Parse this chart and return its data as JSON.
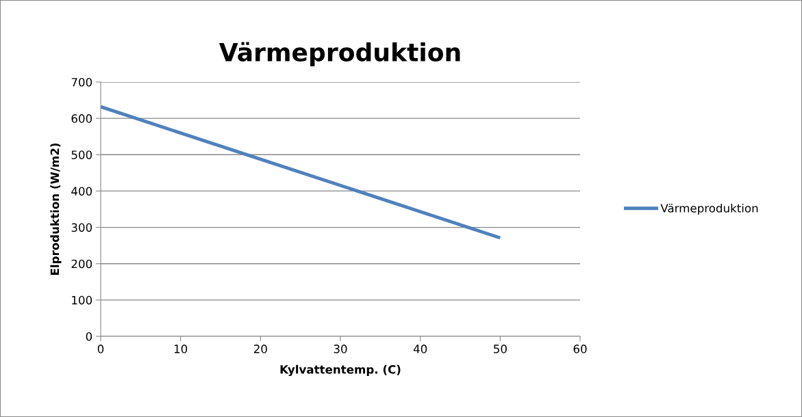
{
  "chart_data": {
    "type": "line",
    "title": "Värmeproduktion",
    "xlabel": "Kylvattentemp. (C)",
    "ylabel": "Elproduktion (W/m2)",
    "series": [
      {
        "name": "Värmeproduktion",
        "color": "#4f81bd",
        "x": [
          0,
          50
        ],
        "values": [
          632,
          271
        ]
      }
    ],
    "xlim": [
      0,
      60
    ],
    "xticks": [
      0,
      10,
      20,
      30,
      40,
      50,
      60
    ],
    "ylim": [
      0,
      700
    ],
    "yticks": [
      0,
      100,
      200,
      300,
      400,
      500,
      600,
      700
    ],
    "grid": "y",
    "legend": "right",
    "marker": "none",
    "line_style": "solid"
  }
}
